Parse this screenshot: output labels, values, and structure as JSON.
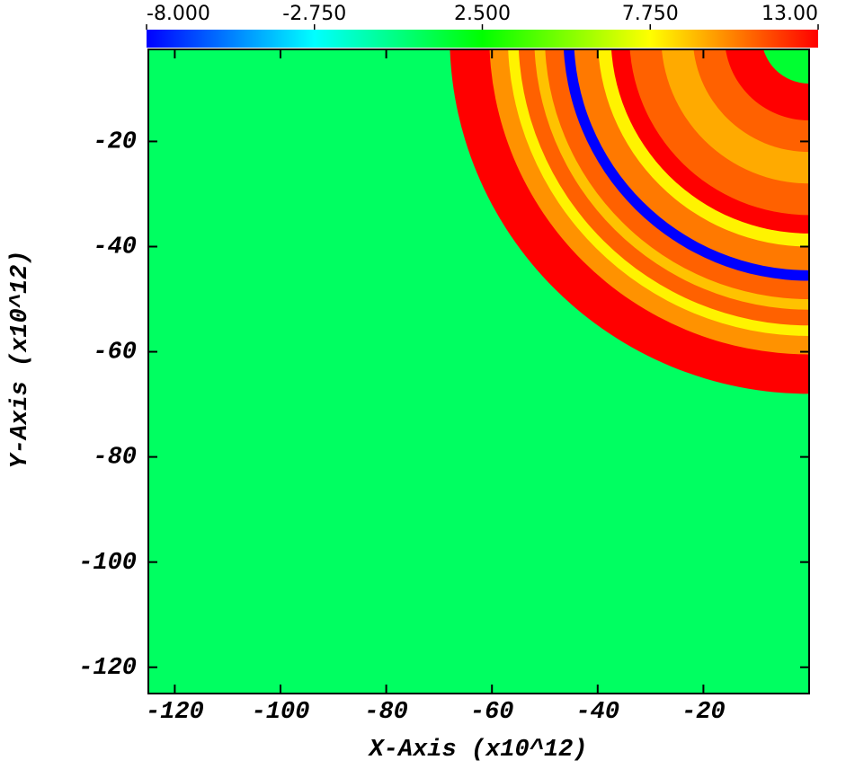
{
  "chart_data": {
    "type": "pseudocolor",
    "xlabel": "X-Axis (x10^12)",
    "ylabel": "Y-Axis (x10^12)",
    "xlim": [
      -125,
      0
    ],
    "ylim": [
      -125,
      -2.5
    ],
    "xticks": [
      -120,
      -100,
      -80,
      -60,
      -40,
      -20
    ],
    "yticks": [
      -20,
      -40,
      -60,
      -80,
      -100,
      -120
    ],
    "clim": [
      -8,
      13
    ],
    "colorbar_ticks": [
      {
        "value": -8,
        "label": "-8.000"
      },
      {
        "value": -2.75,
        "label": "-2.750"
      },
      {
        "value": 2.5,
        "label": "2.500"
      },
      {
        "value": 7.75,
        "label": "7.750"
      },
      {
        "value": 13,
        "label": "13.00"
      }
    ],
    "colormap": [
      "#0000ff",
      "#00ffff",
      "#00ff00",
      "#ffff00",
      "#ff0000"
    ],
    "background_value": 0.5,
    "rings": {
      "outer_radius": [
        68,
        60.5,
        57,
        55,
        52,
        50,
        46.5,
        44.5,
        40,
        37.5,
        34,
        28,
        22,
        16,
        9
      ],
      "values": [
        13,
        10,
        8,
        11,
        9,
        11,
        -8,
        10.5,
        8,
        13,
        11,
        9.5,
        11,
        13,
        1.5
      ]
    }
  }
}
